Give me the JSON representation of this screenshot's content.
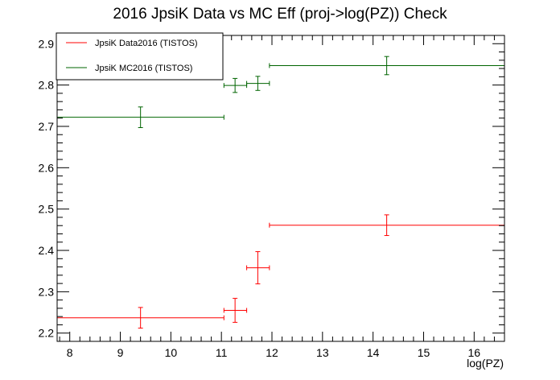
{
  "chart_data": {
    "type": "scatter",
    "title": "2016 JpsiK Data vs MC Eff (proj->log(PZ)) Check",
    "xlabel": "log(PZ)",
    "ylabel": "",
    "xlim": [
      7.75,
      16.6
    ],
    "ylim": [
      2.18,
      2.92
    ],
    "xticks": [
      8,
      9,
      10,
      11,
      12,
      13,
      14,
      15,
      16
    ],
    "yticks": [
      2.2,
      2.3,
      2.4,
      2.5,
      2.6,
      2.7,
      2.8,
      2.9
    ],
    "grid": false,
    "legend_position": "top-left",
    "series": [
      {
        "name": "JpsiK Data2016 (TISTOS)",
        "color": "#ff0000",
        "points": [
          {
            "x": 9.4,
            "xlo": 7.75,
            "xhi": 11.05,
            "y": 2.237,
            "yerr": 0.025
          },
          {
            "x": 11.27,
            "xlo": 11.05,
            "xhi": 11.5,
            "y": 2.255,
            "yerr": 0.029
          },
          {
            "x": 11.72,
            "xlo": 11.5,
            "xhi": 11.95,
            "y": 2.358,
            "yerr": 0.039
          },
          {
            "x": 14.27,
            "xlo": 11.95,
            "xhi": 16.6,
            "y": 2.461,
            "yerr": 0.025
          }
        ]
      },
      {
        "name": "JpsiK MC2016 (TISTOS)",
        "color": "#006400",
        "points": [
          {
            "x": 9.4,
            "xlo": 7.75,
            "xhi": 11.05,
            "y": 2.722,
            "yerr": 0.025
          },
          {
            "x": 11.27,
            "xlo": 11.05,
            "xhi": 11.5,
            "y": 2.799,
            "yerr": 0.017
          },
          {
            "x": 11.72,
            "xlo": 11.5,
            "xhi": 11.95,
            "y": 2.804,
            "yerr": 0.017
          },
          {
            "x": 14.27,
            "xlo": 11.95,
            "xhi": 16.6,
            "y": 2.847,
            "yerr": 0.022
          }
        ]
      }
    ]
  }
}
